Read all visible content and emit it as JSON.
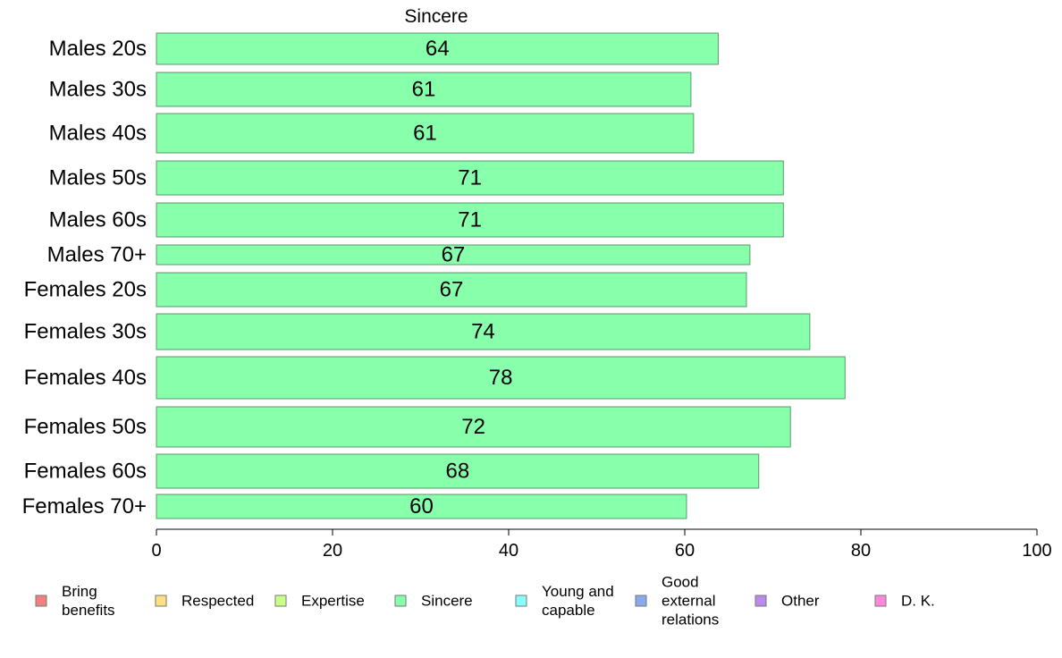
{
  "chart_data": {
    "type": "bar",
    "orientation": "horizontal",
    "title": "Sincere",
    "xlabel": "",
    "ylabel": "",
    "xlim": [
      0,
      100
    ],
    "xticks": [
      0,
      20,
      40,
      60,
      80,
      100
    ],
    "grid": false,
    "categories": [
      "Males 20s",
      "Males 30s",
      "Males 40s",
      "Males 50s",
      "Males 60s",
      "Males 70+",
      "Females 20s",
      "Females 30s",
      "Females 40s",
      "Females 50s",
      "Females 60s",
      "Females 70+"
    ],
    "series": [
      {
        "name": "Sincere",
        "color": "#88ffaa",
        "values": [
          63.8,
          60.7,
          61.0,
          71.2,
          71.2,
          67.4,
          67.0,
          74.2,
          78.2,
          72.0,
          68.4,
          60.2
        ],
        "labels": [
          "64",
          "61",
          "61",
          "71",
          "71",
          "67",
          "67",
          "74",
          "78",
          "72",
          "68",
          "60"
        ]
      }
    ],
    "bar_stroke": "#5a9a6a",
    "legend": {
      "placement": "bottom",
      "items": [
        {
          "lines": [
            "Bring",
            "benefits"
          ],
          "color": "#f08080"
        },
        {
          "lines": [
            "Respected"
          ],
          "color": "#ffe080"
        },
        {
          "lines": [
            "Expertise"
          ],
          "color": "#ccff88"
        },
        {
          "lines": [
            "Sincere"
          ],
          "color": "#88ffaa"
        },
        {
          "lines": [
            "Young and",
            "capable"
          ],
          "color": "#88ffff"
        },
        {
          "lines": [
            "Good",
            "external",
            "relations"
          ],
          "color": "#88aaee"
        },
        {
          "lines": [
            "Other"
          ],
          "color": "#bb88ee"
        },
        {
          "lines": [
            "D. K."
          ],
          "color": "#ff88dd"
        }
      ]
    }
  }
}
